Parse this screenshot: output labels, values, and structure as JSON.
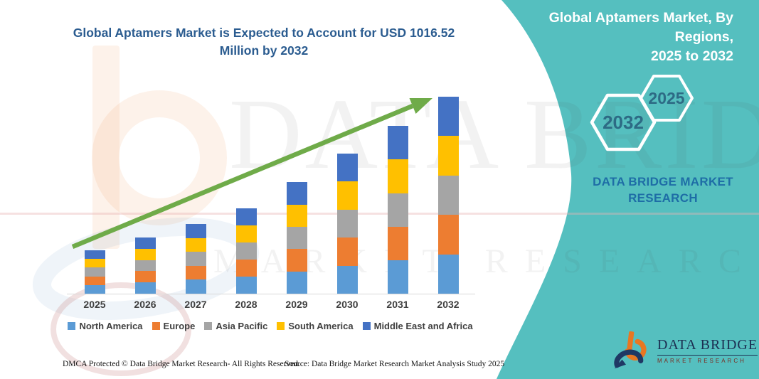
{
  "header": {
    "main_title_line1": "Global Aptamers Market is Expected to Account for USD 1016.52",
    "main_title_line2": "Million by 2032",
    "banner_title_line1": "Global Aptamers Market, By Regions,",
    "banner_title_line2": "2025 to 2032"
  },
  "banner": {
    "teal_color": "#55bfbf",
    "hexagons": [
      "2032",
      "2025"
    ],
    "brand_line1": "DATA BRIDGE MARKET",
    "brand_line2": "RESEARCH"
  },
  "watermark": {
    "line1": "DATA BRIDGE",
    "line2": "MARKET RESEARCH"
  },
  "logo": {
    "name": "DATA BRIDGE",
    "subtitle": "MARKET RESEARCH"
  },
  "footer": {
    "left": "DMCA Protected © Data Bridge Market Research-  All Rights Reserved.",
    "right": "Source: Data Bridge Market Research  Market Analysis Study 2025"
  },
  "chart_data": {
    "type": "bar",
    "stacked": true,
    "title": "Global Aptamers Market is Expected to Account for USD 1016.52 Million by 2032",
    "unit": "USD Million",
    "categories": [
      "2025",
      "2026",
      "2027",
      "2028",
      "2029",
      "2030",
      "2031",
      "2032"
    ],
    "totals": [
      225,
      290,
      360,
      440,
      575,
      725,
      865,
      1016.52
    ],
    "series": [
      {
        "name": "North America",
        "color": "#5B9BD5",
        "values": [
          45,
          58,
          72,
          88,
          115,
          145,
          173,
          203.3
        ]
      },
      {
        "name": "Europe",
        "color": "#ED7D31",
        "values": [
          45,
          58,
          72,
          88,
          115,
          145,
          173,
          203.3
        ]
      },
      {
        "name": "Asia Pacific",
        "color": "#A5A5A5",
        "values": [
          45,
          58,
          72,
          88,
          115,
          145,
          173,
          203.3
        ]
      },
      {
        "name": "South America",
        "color": "#FFC000",
        "values": [
          45,
          58,
          72,
          88,
          115,
          145,
          173,
          203.3
        ]
      },
      {
        "name": "Middle East and Africa",
        "color": "#4472C4",
        "values": [
          45,
          58,
          72,
          88,
          115,
          145,
          173,
          203.3
        ]
      }
    ],
    "ylim": [
      0,
      1075
    ],
    "grid": false,
    "legend_position": "bottom",
    "trend_arrow": true,
    "arrow_color": "#6fab49",
    "axis": {
      "baseline_color": "#d9d9d9",
      "label_color": "#404040"
    }
  }
}
